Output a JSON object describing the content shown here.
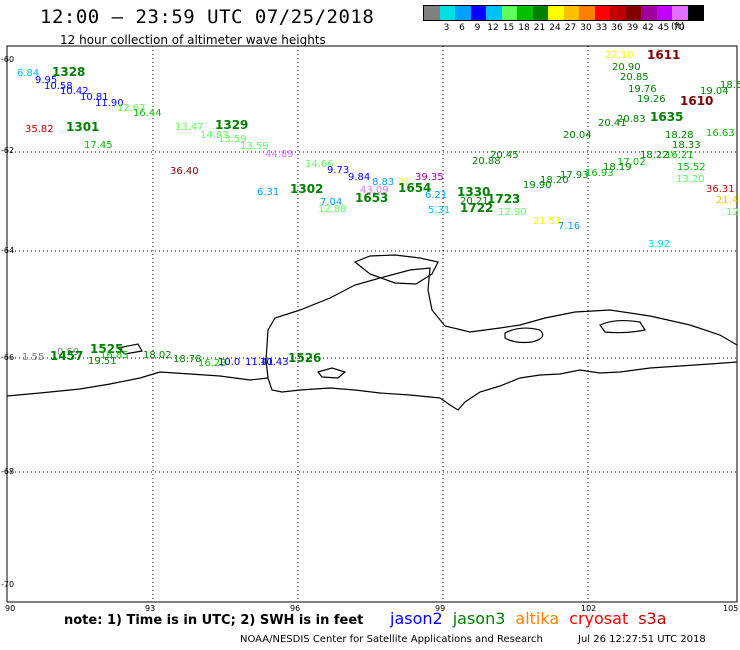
{
  "header": {
    "title": "12:00 – 23:59 UTC 07/25/2018",
    "subtitle": "12 hour collection of altimeter wave heights"
  },
  "legend": {
    "colors": [
      "#808080",
      "#00e0e0",
      "#00a0ff",
      "#0000ff",
      "#00c0ff",
      "#60ff60",
      "#00c000",
      "#008000",
      "#ffff00",
      "#ffc000",
      "#ff8000",
      "#ff0000",
      "#c00000",
      "#800000",
      "#a000a0",
      "#c000ff",
      "#e070ff",
      "#000000"
    ],
    "labels": [
      "3",
      "6",
      "9",
      "12",
      "15",
      "18",
      "21",
      "24",
      "27",
      "30",
      "33",
      "36",
      "39",
      "42",
      "45",
      "70"
    ],
    "unit": "(ft)"
  },
  "axes": {
    "x_ticks": [
      "90",
      "93",
      "96",
      "99",
      "102",
      "105"
    ],
    "y_ticks": [
      "-60",
      "-62",
      "-64",
      "-66",
      "-68",
      "-70"
    ]
  },
  "observations": [
    {
      "text": "6.84",
      "color": "#00c0ff"
    },
    {
      "text": "1328",
      "color": "#008000",
      "big": true
    },
    {
      "text": "9.95",
      "color": "#0000ff"
    },
    {
      "text": "10.58",
      "color": "#0000ff"
    },
    {
      "text": "10.42",
      "color": "#0000ff"
    },
    {
      "text": "10.81",
      "color": "#0000ff"
    },
    {
      "text": "11.90",
      "color": "#0000ff"
    },
    {
      "text": "12.67",
      "color": "#60ff60"
    },
    {
      "text": "16.44",
      "color": "#00c000"
    },
    {
      "text": "35.82",
      "color": "#c00000"
    },
    {
      "text": "1301",
      "color": "#008000",
      "big": true
    },
    {
      "text": "17.45",
      "color": "#00c000"
    },
    {
      "text": "13.47",
      "color": "#60ff60"
    },
    {
      "text": "1329",
      "color": "#008000",
      "big": true
    },
    {
      "text": "14.83",
      "color": "#60ff60"
    },
    {
      "text": "13.59",
      "color": "#60ff60"
    },
    {
      "text": "13.59",
      "color": "#60ff60"
    },
    {
      "text": "44.89",
      "color": "#e070ff"
    },
    {
      "text": "36.40",
      "color": "#800000"
    },
    {
      "text": "14.66",
      "color": "#60ff60"
    },
    {
      "text": "9.73",
      "color": "#0000ff"
    },
    {
      "text": "9.84",
      "color": "#0000ff"
    },
    {
      "text": "6.31",
      "color": "#00a0ff"
    },
    {
      "text": "1302",
      "color": "#008000",
      "big": true
    },
    {
      "text": "7.04",
      "color": "#00a0ff"
    },
    {
      "text": "12.88",
      "color": "#60ff60"
    },
    {
      "text": "1653",
      "color": "#008000",
      "big": true
    },
    {
      "text": "8.83",
      "color": "#00a0ff"
    },
    {
      "text": "43.09",
      "color": "#e070ff"
    },
    {
      "text": "21",
      "color": "#ffff00"
    },
    {
      "text": "1654",
      "color": "#008000",
      "big": true
    },
    {
      "text": "39.35",
      "color": "#a000a0"
    },
    {
      "text": "6.21",
      "color": "#00a0ff"
    },
    {
      "text": "5.31",
      "color": "#00c0ff"
    },
    {
      "text": "1330",
      "color": "#008000",
      "big": true
    },
    {
      "text": "20.88",
      "color": "#008000"
    },
    {
      "text": "20.45",
      "color": "#008000"
    },
    {
      "text": "20.21",
      "color": "#008000"
    },
    {
      "text": "1723",
      "color": "#008000",
      "big": true
    },
    {
      "text": "1722",
      "color": "#008000",
      "big": true
    },
    {
      "text": "12.90",
      "color": "#60ff60"
    },
    {
      "text": "19.90",
      "color": "#008000"
    },
    {
      "text": "18.20",
      "color": "#008000"
    },
    {
      "text": "17.93",
      "color": "#008000"
    },
    {
      "text": "21.51",
      "color": "#ffff00"
    },
    {
      "text": "7.16",
      "color": "#00a0ff"
    },
    {
      "text": "3.92",
      "color": "#00e0e0"
    },
    {
      "text": "20.04",
      "color": "#008000"
    },
    {
      "text": "20.41",
      "color": "#008000"
    },
    {
      "text": "22.10",
      "color": "#ffff00"
    },
    {
      "text": "1611",
      "color": "#800000",
      "big": true
    },
    {
      "text": "20.90",
      "color": "#008000"
    },
    {
      "text": "20.85",
      "color": "#008000"
    },
    {
      "text": "19.76",
      "color": "#008000"
    },
    {
      "text": "19.26",
      "color": "#008000"
    },
    {
      "text": "1610",
      "color": "#800000",
      "big": true
    },
    {
      "text": "19.04",
      "color": "#008000"
    },
    {
      "text": "18.5",
      "color": "#008000"
    },
    {
      "text": "20.83",
      "color": "#008000"
    },
    {
      "text": "1635",
      "color": "#008000",
      "big": true
    },
    {
      "text": "18.28",
      "color": "#008000"
    },
    {
      "text": "18.33",
      "color": "#008000"
    },
    {
      "text": "16.63",
      "color": "#00c000"
    },
    {
      "text": "16.21",
      "color": "#00c000"
    },
    {
      "text": "15.52",
      "color": "#00c000"
    },
    {
      "text": "13.20",
      "color": "#60ff60"
    },
    {
      "text": "36.31",
      "color": "#c00000"
    },
    {
      "text": "21.4",
      "color": "#ffc000"
    },
    {
      "text": "12",
      "color": "#60ff60"
    },
    {
      "text": "18.22",
      "color": "#008000"
    },
    {
      "text": "17.02",
      "color": "#00c000"
    },
    {
      "text": "18.19",
      "color": "#008000"
    },
    {
      "text": "16.93",
      "color": "#00c000"
    },
    {
      "text": "0.59",
      "color": "#808080"
    },
    {
      "text": "1.55",
      "color": "#808080"
    },
    {
      "text": "1457",
      "color": "#008000",
      "big": true
    },
    {
      "text": "1525",
      "color": "#008000",
      "big": true
    },
    {
      "text": "16.85",
      "color": "#00c000"
    },
    {
      "text": "19.51",
      "color": "#008000"
    },
    {
      "text": "18.02",
      "color": "#008000"
    },
    {
      "text": "18.78",
      "color": "#008000"
    },
    {
      "text": "16.23",
      "color": "#00c000"
    },
    {
      "text": "10.0",
      "color": "#0000ff"
    },
    {
      "text": "11.41",
      "color": "#0000ff"
    },
    {
      "text": "10.43",
      "color": "#0000ff"
    },
    {
      "text": "1526",
      "color": "#008000",
      "big": true
    }
  ],
  "footer": {
    "note": "note: 1) Time is in UTC; 2) SWH is in feet",
    "satellites": [
      {
        "name": "jason2",
        "color": "#0000ff"
      },
      {
        "name": "jason3",
        "color": "#008000"
      },
      {
        "name": "altika",
        "color": "#ff8000"
      },
      {
        "name": "cryosat",
        "color": "#ff0000"
      },
      {
        "name": "s3a",
        "color": "#c00000"
      }
    ],
    "credit": "NOAA/NESDIS Center for Satellite Applications and Research",
    "timestamp": "Jul 26 12:27:51 UTC 2018"
  }
}
